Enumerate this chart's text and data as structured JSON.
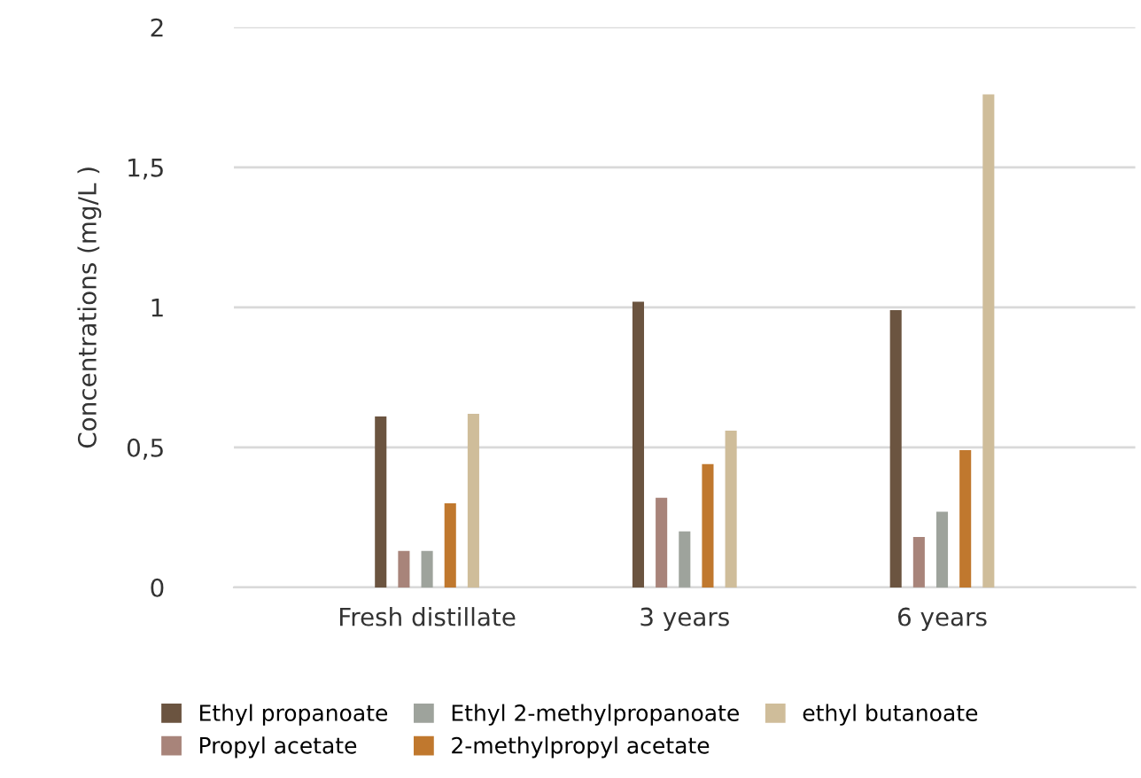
{
  "chart_data": {
    "type": "bar",
    "ylabel": "Concentrations (mg/L )",
    "categories": [
      "Fresh distillate",
      "3 years",
      "6 years"
    ],
    "series": [
      {
        "name": "Ethyl propanoate",
        "color": "#6b5440",
        "values": [
          0.61,
          1.02,
          0.99
        ]
      },
      {
        "name": "Propyl acetate",
        "color": "#a8847a",
        "values": [
          0.13,
          0.32,
          0.18
        ]
      },
      {
        "name": "Ethyl 2-methylpropanoate",
        "color": "#9ea39c",
        "values": [
          0.13,
          0.2,
          0.27
        ]
      },
      {
        "name": "2-methylpropyl acetate",
        "color": "#c0782e",
        "values": [
          0.3,
          0.44,
          0.49
        ]
      },
      {
        "name": "ethyl butanoate",
        "color": "#cfbd9a",
        "values": [
          0.62,
          0.56,
          1.76
        ]
      }
    ],
    "ylim": [
      0,
      2
    ],
    "yticks": [
      0,
      {
        "value": 0.5,
        "label": "0,5"
      },
      1,
      {
        "value": 1.5,
        "label": "1,5"
      },
      2
    ],
    "grid": "y",
    "legend": "bottom"
  }
}
